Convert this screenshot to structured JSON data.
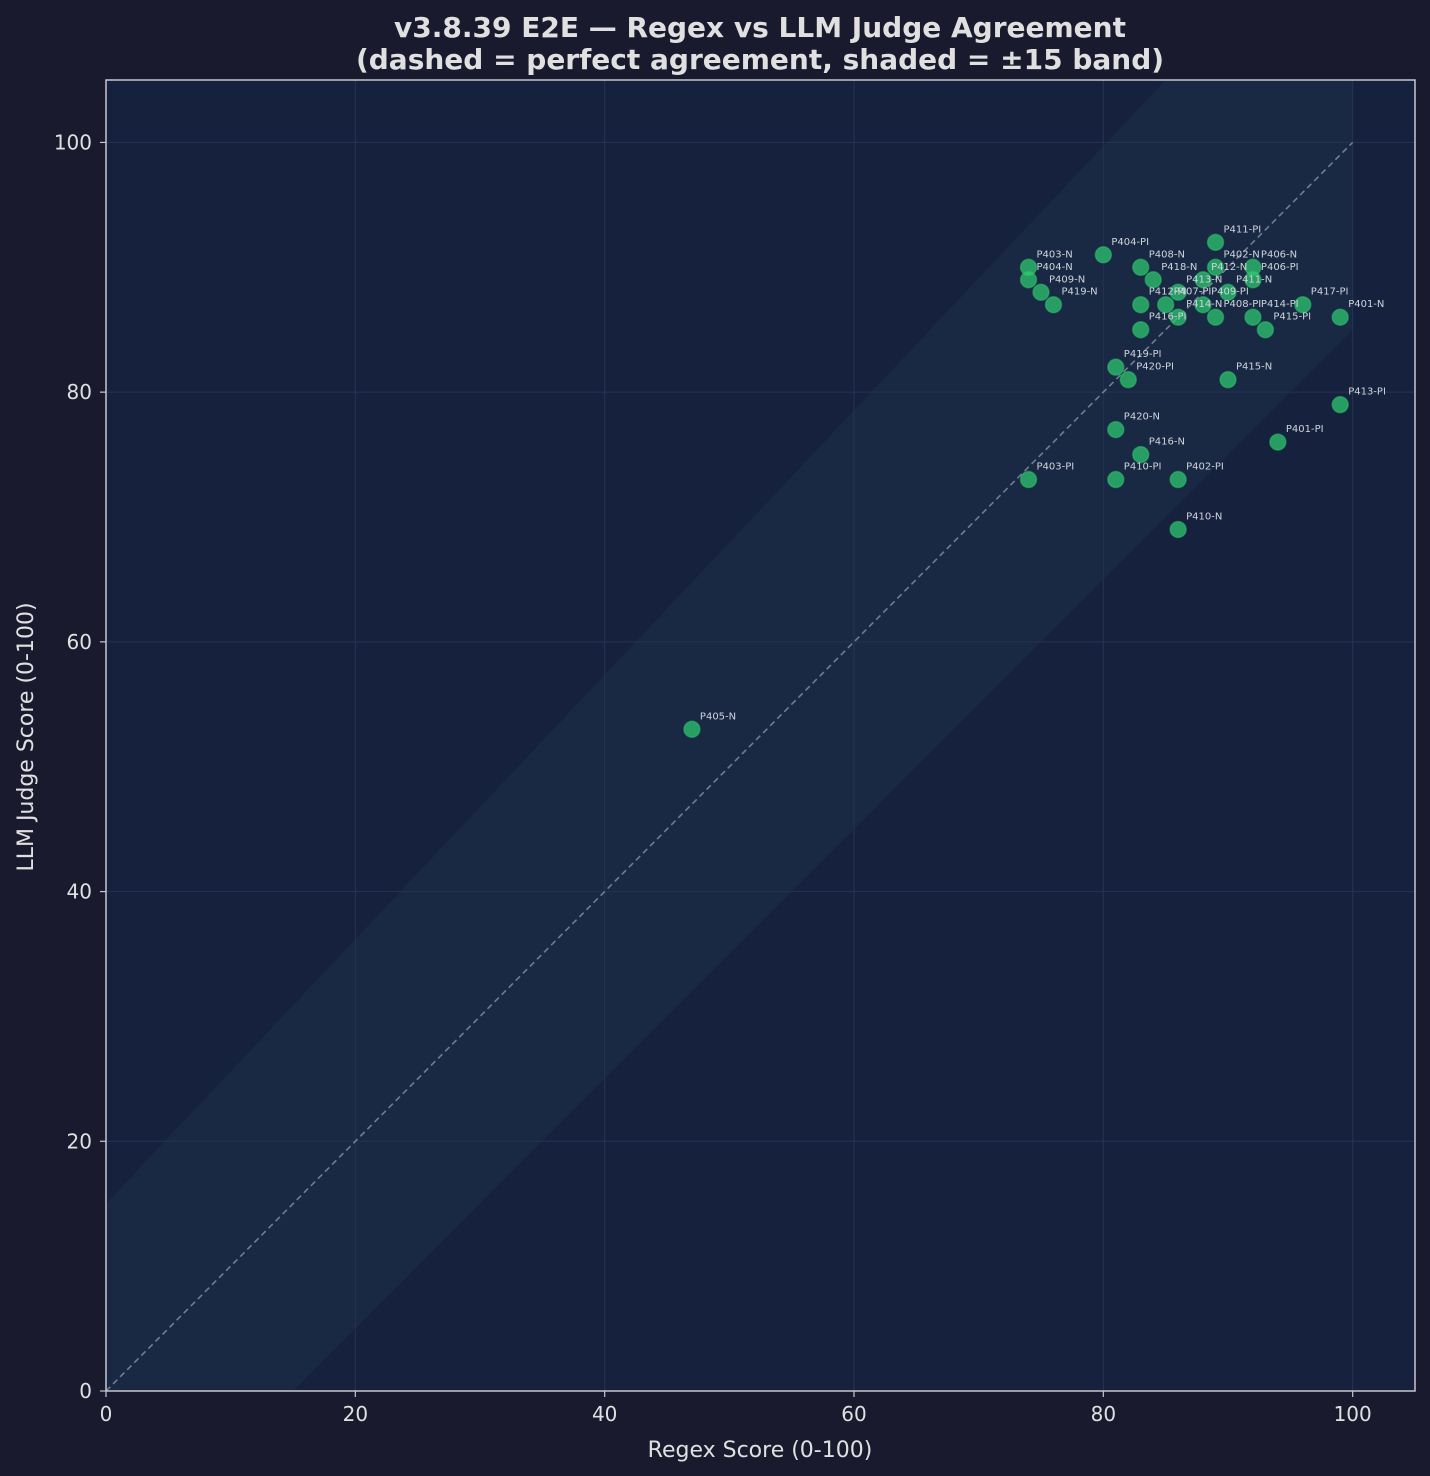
{
  "colors": {
    "page_bg": "#1a1a2e",
    "plot_bg": "#16213e",
    "band": "#1a2a44",
    "text": "#e0e0e0",
    "spine": "#c8c8d0",
    "grid": "#263352",
    "point": "#2ecc71",
    "diagonal": "#8e99a8",
    "label": "#cfd4dc"
  },
  "chart_data": {
    "type": "scatter",
    "title_line1": "v3.8.39 E2E — Regex vs LLM Judge Agreement",
    "title_line2": "(dashed = perfect agreement, shaded = ±15 band)",
    "xlabel": "Regex Score (0-100)",
    "ylabel": "LLM Judge Score (0-100)",
    "xlim": [
      0,
      105
    ],
    "ylim": [
      0,
      105
    ],
    "xticks": [
      0,
      20,
      40,
      60,
      80,
      100
    ],
    "yticks": [
      0,
      20,
      40,
      60,
      80,
      100
    ],
    "diagonal": [
      0,
      100
    ],
    "band": 15,
    "grid": true,
    "points": [
      {
        "label": "P411-PI",
        "x": 89,
        "y": 92
      },
      {
        "label": "P404-PI",
        "x": 80,
        "y": 91
      },
      {
        "label": "P403-N",
        "x": 74,
        "y": 90
      },
      {
        "label": "P408-N",
        "x": 83,
        "y": 90
      },
      {
        "label": "P402-N",
        "x": 89,
        "y": 90
      },
      {
        "label": "P406-N",
        "x": 92,
        "y": 90
      },
      {
        "label": "P404-N",
        "x": 74,
        "y": 89
      },
      {
        "label": "P418-N",
        "x": 84,
        "y": 89
      },
      {
        "label": "P412-N",
        "x": 88,
        "y": 89
      },
      {
        "label": "P406-PI",
        "x": 92,
        "y": 89
      },
      {
        "label": "P409-N",
        "x": 75,
        "y": 88
      },
      {
        "label": "P413-N",
        "x": 86,
        "y": 88
      },
      {
        "label": "P411-N",
        "x": 90,
        "y": 88
      },
      {
        "label": "P419-N",
        "x": 76,
        "y": 87
      },
      {
        "label": "P412-PI",
        "x": 83,
        "y": 87
      },
      {
        "label": "P407-PI",
        "x": 85,
        "y": 87
      },
      {
        "label": "P409-PI",
        "x": 88,
        "y": 87
      },
      {
        "label": "P417-PI",
        "x": 96,
        "y": 87
      },
      {
        "label": "P414-N",
        "x": 86,
        "y": 86
      },
      {
        "label": "P408-PI",
        "x": 89,
        "y": 86
      },
      {
        "label": "P414-PI",
        "x": 92,
        "y": 86
      },
      {
        "label": "P401-N",
        "x": 99,
        "y": 86
      },
      {
        "label": "P416-PI",
        "x": 83,
        "y": 85
      },
      {
        "label": "P415-PI",
        "x": 93,
        "y": 85
      },
      {
        "label": "P419-PI",
        "x": 81,
        "y": 82
      },
      {
        "label": "P420-PI",
        "x": 82,
        "y": 81
      },
      {
        "label": "P415-N",
        "x": 90,
        "y": 81
      },
      {
        "label": "P413-PI",
        "x": 99,
        "y": 79
      },
      {
        "label": "P420-N",
        "x": 81,
        "y": 77
      },
      {
        "label": "P401-PI",
        "x": 94,
        "y": 76
      },
      {
        "label": "P416-N",
        "x": 83,
        "y": 75
      },
      {
        "label": "P403-PI",
        "x": 74,
        "y": 73
      },
      {
        "label": "P410-PI",
        "x": 81,
        "y": 73
      },
      {
        "label": "P402-PI",
        "x": 86,
        "y": 73
      },
      {
        "label": "P410-N",
        "x": 86,
        "y": 69
      },
      {
        "label": "P405-N",
        "x": 47,
        "y": 53
      }
    ]
  }
}
